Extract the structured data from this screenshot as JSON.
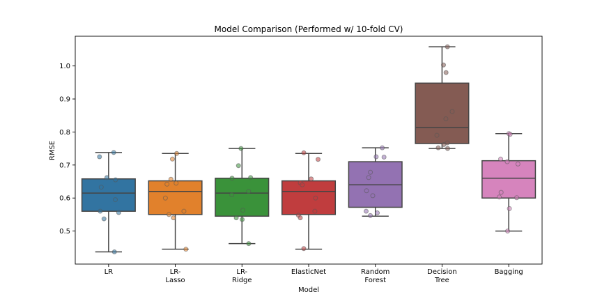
{
  "chart_data": {
    "type": "box",
    "title": "Model Comparison (Performed w/ 10-fold CV)",
    "xlabel": "Model",
    "ylabel": "RMSE",
    "ylim": [
      0.4,
      1.09
    ],
    "yticks": [
      "0.5",
      "0.6",
      "0.7",
      "0.8",
      "0.9",
      "1.0"
    ],
    "categories": [
      {
        "label_lines": [
          "LR"
        ],
        "color": "#3274a1"
      },
      {
        "label_lines": [
          "LR-",
          "Lasso"
        ],
        "color": "#e1812c"
      },
      {
        "label_lines": [
          "LR-",
          "Ridge"
        ],
        "color": "#3a923a"
      },
      {
        "label_lines": [
          "ElasticNet"
        ],
        "color": "#c03d3e"
      },
      {
        "label_lines": [
          "Random",
          "Forest"
        ],
        "color": "#9372b2"
      },
      {
        "label_lines": [
          "Decision",
          "Tree"
        ],
        "color": "#845b53"
      },
      {
        "label_lines": [
          "Bagging"
        ],
        "color": "#d684bd"
      }
    ],
    "series": [
      {
        "min": 0.437,
        "q1": 0.56,
        "median": 0.615,
        "q3": 0.658,
        "max": 0.738,
        "points": [
          0.738,
          0.725,
          0.662,
          0.655,
          0.633,
          0.595,
          0.56,
          0.556,
          0.537,
          0.437
        ]
      },
      {
        "min": 0.445,
        "q1": 0.55,
        "median": 0.62,
        "q3": 0.652,
        "max": 0.735,
        "points": [
          0.735,
          0.718,
          0.657,
          0.645,
          0.642,
          0.6,
          0.56,
          0.55,
          0.54,
          0.445
        ]
      },
      {
        "min": 0.462,
        "q1": 0.545,
        "median": 0.615,
        "q3": 0.66,
        "max": 0.75,
        "points": [
          0.75,
          0.698,
          0.662,
          0.66,
          0.62,
          0.61,
          0.563,
          0.54,
          0.535,
          0.462
        ]
      },
      {
        "min": 0.445,
        "q1": 0.55,
        "median": 0.62,
        "q3": 0.652,
        "max": 0.735,
        "points": [
          0.737,
          0.717,
          0.658,
          0.646,
          0.64,
          0.6,
          0.56,
          0.548,
          0.54,
          0.447
        ]
      },
      {
        "min": 0.545,
        "q1": 0.572,
        "median": 0.64,
        "q3": 0.71,
        "max": 0.752,
        "points": [
          0.752,
          0.725,
          0.724,
          0.678,
          0.662,
          0.622,
          0.607,
          0.56,
          0.555,
          0.547
        ]
      },
      {
        "min": 0.75,
        "q1": 0.765,
        "median": 0.813,
        "q3": 0.948,
        "max": 1.058,
        "points": [
          1.058,
          1.003,
          0.98,
          0.862,
          0.84,
          0.79,
          0.767,
          0.762,
          0.752,
          0.75
        ]
      },
      {
        "min": 0.5,
        "q1": 0.6,
        "median": 0.66,
        "q3": 0.713,
        "max": 0.795,
        "points": [
          0.795,
          0.793,
          0.718,
          0.71,
          0.703,
          0.617,
          0.603,
          0.601,
          0.568,
          0.5
        ]
      }
    ],
    "grid": false,
    "legend": "none"
  }
}
